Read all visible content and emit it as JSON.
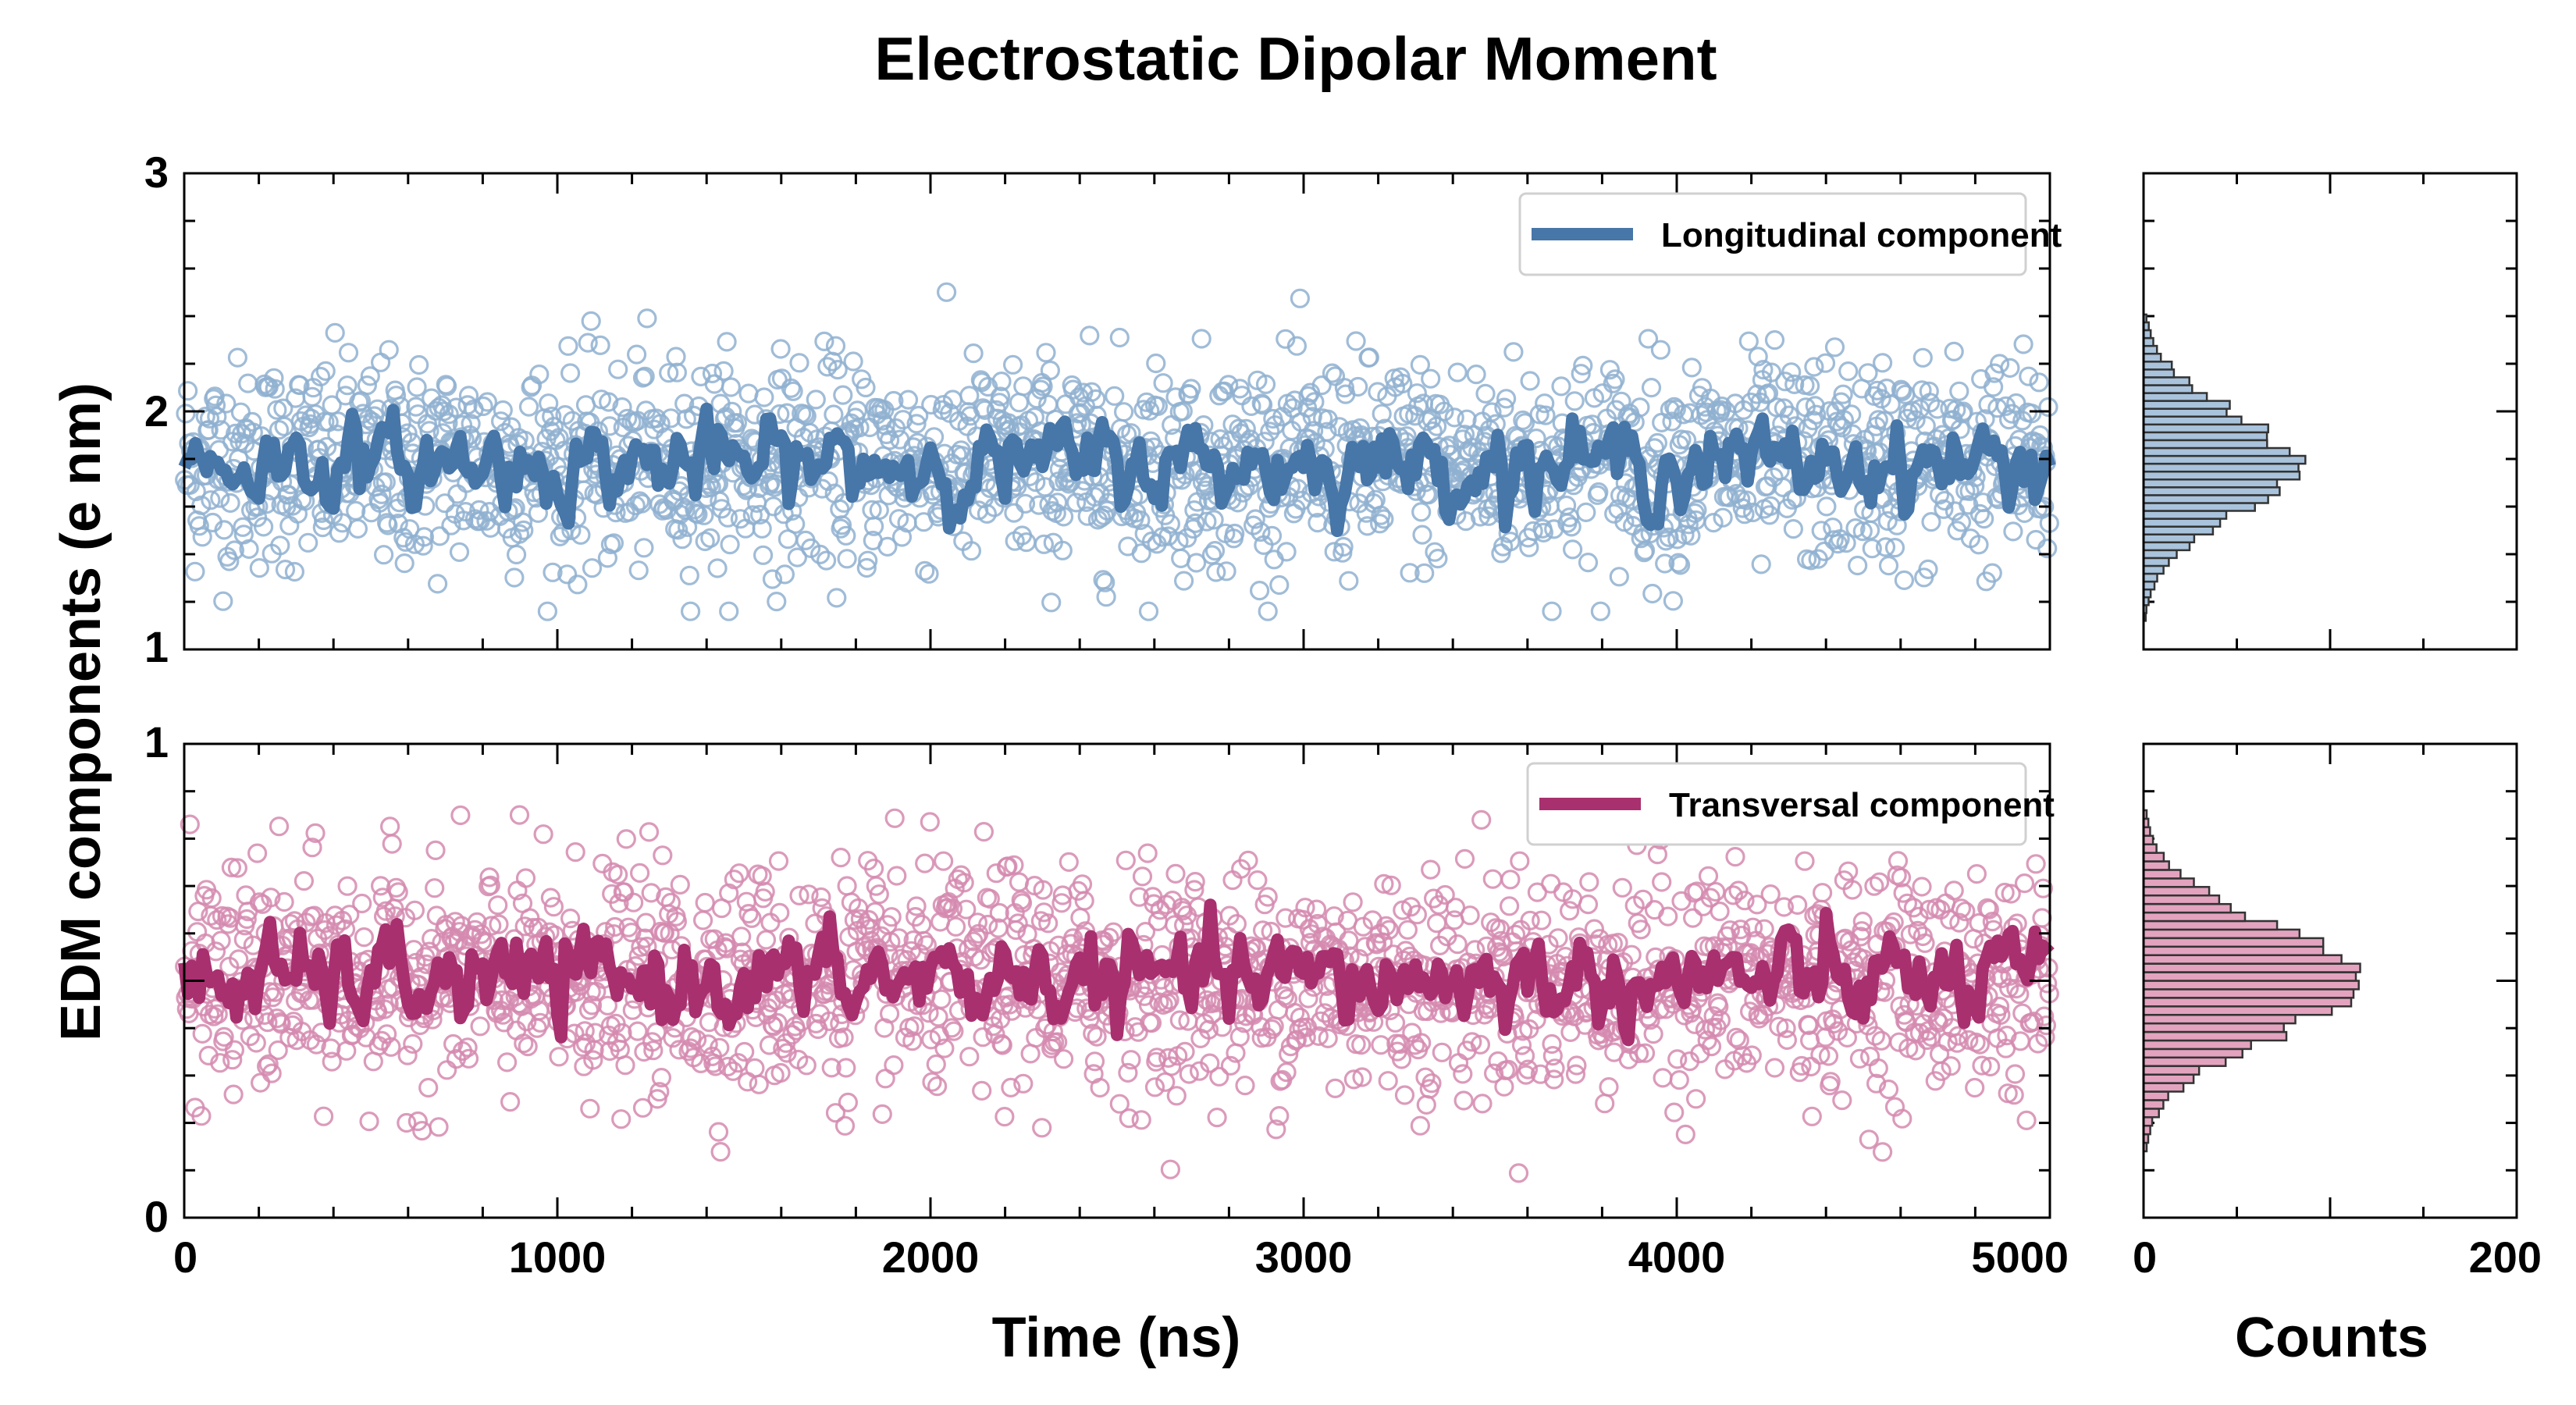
{
  "chart_data": {
    "title": "Electrostatic Dipolar Moment",
    "ylabel": "EDM components (e nm)",
    "xlabel": "Time (ns)",
    "hist_xlabel": "Counts",
    "time_axis": {
      "xlim": [
        0,
        5000
      ],
      "ticks": [
        "0",
        "1000",
        "2000",
        "3000",
        "4000",
        "5000"
      ]
    },
    "counts_axis": {
      "xlim": [
        0,
        200
      ],
      "ticks": [
        "0",
        "200"
      ]
    },
    "panels": [
      {
        "type": "scatter",
        "name": "Longitudinal component",
        "color": "#4776a8",
        "point_color": "#8fb0d0",
        "hist_fill": "#a9c3dc",
        "ylim": [
          1,
          3
        ],
        "yticks": [
          "1",
          "2",
          "3"
        ],
        "mean": 1.78,
        "scatter_sd": 0.22,
        "smooth_sd": 0.08,
        "n_points": 1800,
        "legend_position": "top-right",
        "hist_peak_counts": 80
      },
      {
        "type": "scatter",
        "name": "Transversal component",
        "color": "#a8306f",
        "point_color": "#d58aaf",
        "hist_fill": "#e3a3bf",
        "ylim": [
          0,
          1
        ],
        "yticks": [
          "0",
          "1"
        ],
        "mean": 0.5,
        "scatter_sd": 0.12,
        "smooth_sd": 0.045,
        "n_points": 1800,
        "legend_position": "top-right",
        "hist_peak_counts": 112
      }
    ]
  }
}
